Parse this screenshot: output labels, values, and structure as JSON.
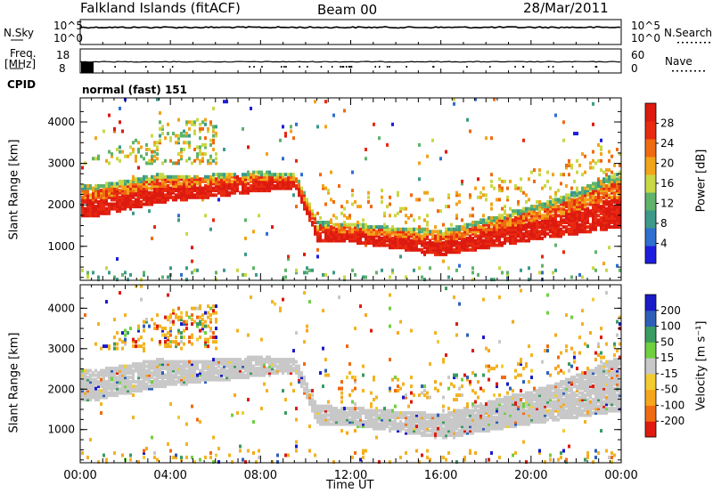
{
  "header": {
    "station": "Falkland Islands (fitACF)",
    "beam": "Beam 00",
    "date": "28/Mar/2011"
  },
  "strips": {
    "nsky": {
      "label": "N.Sky",
      "ticks": [
        "10^5",
        "10^0"
      ]
    },
    "nsearch": {
      "label": "N.Search",
      "ticks": [
        "10^5",
        "10^0"
      ]
    },
    "freq": {
      "label": "Freq.",
      "unit": "[MHz]",
      "ticks": [
        "18",
        "8"
      ]
    },
    "nave": {
      "label": "Nave",
      "ticks": [
        "60",
        "0"
      ]
    },
    "cpid": {
      "label": "CPID",
      "mode": "normal (fast) 151"
    }
  },
  "colors": {
    "power": [
      "#1d1de0",
      "#2e6fd0",
      "#3d9a8a",
      "#5fb36a",
      "#c9d845",
      "#f2a41a",
      "#f06a12",
      "#e82a10",
      "#dd1a10"
    ],
    "velocity": [
      "#e01a10",
      "#f06a12",
      "#f6a61c",
      "#f2cc30",
      "#c8c8c8",
      "#6fd040",
      "#3a9c60",
      "#2e5fb8",
      "#1a1ac8"
    ]
  },
  "chart_data": [
    {
      "type": "heatmap",
      "title": "",
      "ylabel": "Slant Range [km]",
      "xlabel": "",
      "x_range": [
        "00:00",
        "24:00"
      ],
      "ylim": [
        180,
        4580
      ],
      "yticks": [
        1000,
        2000,
        3000,
        4000
      ],
      "colorbar": {
        "label": "Power [dB]",
        "ticks": [
          "28",
          "24",
          "20",
          "16",
          "12",
          "8",
          "4"
        ]
      }
    },
    {
      "type": "heatmap",
      "title": "",
      "ylabel": "Slant Range [km]",
      "xlabel": "Time UT",
      "x_range": [
        "00:00",
        "24:00"
      ],
      "xticks": [
        "00:00",
        "04:00",
        "08:00",
        "12:00",
        "16:00",
        "20:00",
        "00:00"
      ],
      "ylim": [
        180,
        4580
      ],
      "yticks": [
        1000,
        2000,
        3000,
        4000
      ],
      "colorbar": {
        "label": "Velocity [m s⁻¹]",
        "ticks": [
          "200",
          "100",
          "50",
          "15",
          "-15",
          "-50",
          "-100",
          "-200"
        ]
      }
    }
  ]
}
